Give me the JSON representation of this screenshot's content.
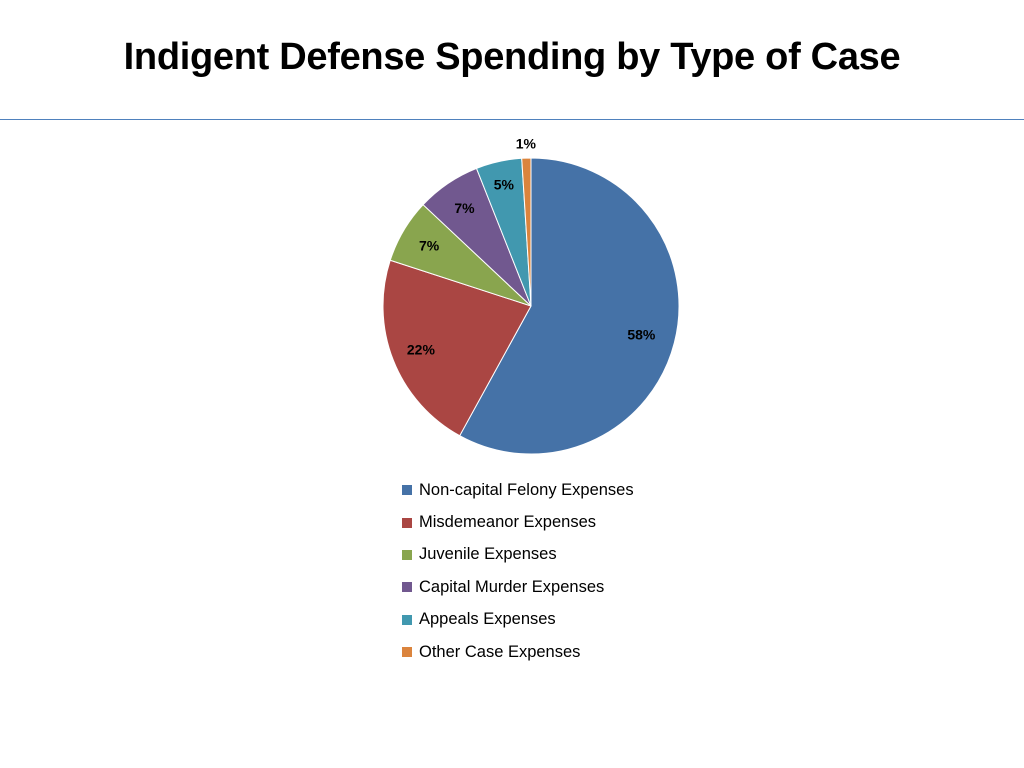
{
  "title": "Indigent Defense Spending by Type of Case",
  "chart_data": {
    "type": "pie",
    "title": "Indigent Defense Spending by Type of Case",
    "slices": [
      {
        "label": "Non-capital Felony Expenses",
        "value": 58,
        "display": "58%",
        "color": "#4572a7"
      },
      {
        "label": "Misdemeanor Expenses",
        "value": 22,
        "display": "22%",
        "color": "#aa4643"
      },
      {
        "label": "Juvenile Expenses",
        "value": 7,
        "display": "7%",
        "color": "#89a54e"
      },
      {
        "label": "Capital Murder Expenses",
        "value": 7,
        "display": "7%",
        "color": "#71588f"
      },
      {
        "label": "Appeals Expenses",
        "value": 5,
        "display": "5%",
        "color": "#4198af"
      },
      {
        "label": "Other Case Expenses",
        "value": 1,
        "display": "1%",
        "color": "#db843d"
      }
    ],
    "legend_position": "bottom"
  }
}
